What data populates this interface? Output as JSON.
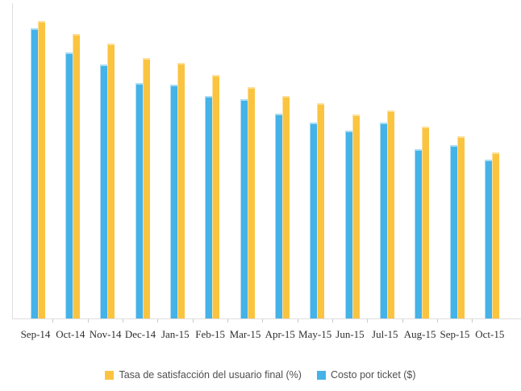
{
  "chart_data": {
    "type": "bar",
    "title": "",
    "xlabel": "",
    "ylabel": "",
    "ylim": [
      0,
      100
    ],
    "y_axis_tick_labels_visible": false,
    "grid": false,
    "legend_position": "bottom",
    "categories": [
      "Sep-14",
      "Oct-14",
      "Nov-14",
      "Dec-14",
      "Jan-15",
      "Feb-15",
      "Mar-15",
      "Apr-15",
      "May-15",
      "Jun-15",
      "Jul-15",
      "Aug-15",
      "Sep-15",
      "Oct-15"
    ],
    "series": [
      {
        "name": "Tasa de satisfacción del usuario final (%)",
        "color": "#FBC440",
        "highlight": "#FDE09C",
        "slot": 1,
        "values": [
          94.5,
          90.3,
          87.2,
          82.7,
          81.0,
          77.2,
          73.5,
          70.6,
          68.2,
          64.7,
          66.1,
          60.9,
          57.7,
          52.7
        ]
      },
      {
        "name": "Costo por ticket ($)",
        "color": "#45B2E8",
        "highlight": "#A9DDF6",
        "slot": 0,
        "values": [
          92.1,
          84.4,
          80.6,
          74.7,
          74.1,
          70.6,
          69.6,
          65.0,
          62.1,
          59.5,
          62.1,
          53.7,
          55.0,
          50.3
        ]
      }
    ]
  },
  "colors": {
    "background": "#ffffff",
    "axis_line": "#dedede",
    "tick": "#c9c9c9",
    "x_label_text": "#2f2f2f",
    "legend_text": "#4f4f4f"
  }
}
